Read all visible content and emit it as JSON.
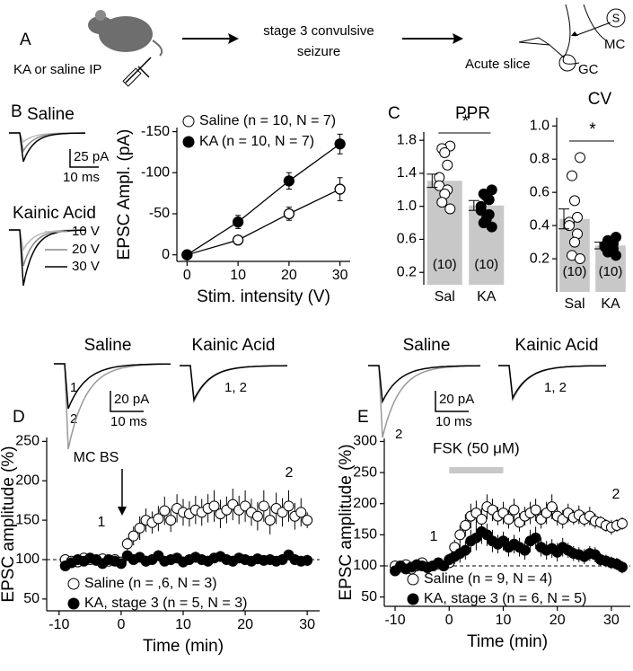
{
  "panels": [
    "A",
    "B",
    "C",
    "D",
    "E"
  ],
  "schematic": {
    "injection": "KA or saline IP",
    "stage": [
      "stage 3 convulsive",
      "seizure"
    ],
    "slice": "Acute slice",
    "mc": "MC",
    "gc": "GC",
    "stim": "S"
  },
  "traces": {
    "B": {
      "saline": "Saline",
      "ka": "Kainic Acid",
      "scale_y": "25 pA",
      "scale_x": "10 ms",
      "legend": [
        "10 V",
        "20 V",
        "30 V"
      ]
    },
    "D": {
      "saline": "Saline",
      "ka": "Kainic Acid",
      "scale_y": "20 pA",
      "scale_x": "10 ms",
      "labels": [
        "1",
        "2",
        "1, 2"
      ]
    },
    "E": {
      "saline": "Saline",
      "ka": "Kainic Acid",
      "scale_y": "20 pA",
      "scale_x": "10 ms",
      "labels": [
        "2",
        "1, 2"
      ]
    }
  },
  "chart_data": [
    {
      "type": "line",
      "x_label": "Stim. intensity (V)",
      "y_label": "EPSC Ampl. (pA)",
      "x": [
        0,
        10,
        20,
        30
      ],
      "xlim": [
        -2,
        32
      ],
      "xticks": [
        0,
        10,
        20,
        30
      ],
      "ylim": [
        8,
        -155
      ],
      "yticks": [
        -150,
        -100,
        -50,
        0
      ],
      "series": [
        {
          "name": "Saline (n = 10, N = 7)",
          "color": "#000000",
          "fill": "#ffffff",
          "values": [
            0,
            -18,
            -50,
            -80
          ],
          "errors": [
            0,
            3,
            8,
            14
          ]
        },
        {
          "name": "KA (n = 10, N = 7)",
          "color": "#000000",
          "fill": "#000000",
          "values": [
            0,
            -40,
            -90,
            -135
          ],
          "errors": [
            0,
            8,
            10,
            12
          ]
        }
      ]
    },
    {
      "type": "bar",
      "title": "PPR",
      "categories": [
        "Sal",
        "KA"
      ],
      "values": [
        1.31,
        1.01
      ],
      "errors": [
        0.08,
        0.06
      ],
      "points": [
        [
          1.73,
          1.7,
          1.65,
          1.5,
          1.35,
          1.25,
          1.2,
          1.15,
          1.05,
          0.97
        ],
        [
          1.2,
          1.15,
          1.12,
          1.08,
          1.0,
          0.95,
          0.9,
          0.85,
          0.8,
          0.75
        ]
      ],
      "n_labels": [
        "(10)",
        "(10)"
      ],
      "significance": "*",
      "color": "#c8c8c8",
      "ylim": [
        0.05,
        1.9
      ],
      "yticks": [
        0.2,
        0.6,
        {
          "value": 1,
          "label": "1.0"
        },
        1.4,
        1.8
      ]
    },
    {
      "type": "bar",
      "title": "CV",
      "categories": [
        "Sal",
        "KA"
      ],
      "values": [
        0.44,
        0.28
      ],
      "errors": [
        0.06,
        0.02
      ],
      "points": [
        [
          0.81,
          0.7,
          0.55,
          0.45,
          0.42,
          0.4,
          0.35,
          0.3,
          0.22,
          0.2
        ],
        [
          0.33,
          0.31,
          0.3,
          0.29,
          0.28,
          0.27,
          0.26,
          0.25,
          0.24,
          0.22
        ]
      ],
      "n_labels": [
        "(10)",
        "(10)"
      ],
      "significance": "*",
      "color": "#c8c8c8",
      "ylim": [
        0,
        1.05
      ],
      "yticks": [
        0.2,
        0.4,
        0.6,
        0.8,
        {
          "value": 1,
          "label": "1.0"
        }
      ]
    },
    {
      "type": "scatter",
      "x_label": "Time (min)",
      "y_label": "EPSC amplitude (%)",
      "x": [
        -9,
        -8,
        -7,
        -6,
        -5,
        -4,
        -3,
        -2,
        -1,
        0,
        1,
        2,
        3,
        4,
        5,
        6,
        7,
        8,
        9,
        10,
        11,
        12,
        13,
        14,
        15,
        16,
        17,
        18,
        19,
        20,
        21,
        22,
        23,
        24,
        25,
        26,
        27,
        28,
        29,
        30
      ],
      "xlim": [
        -12,
        32
      ],
      "xticks": [
        -10,
        0,
        10,
        20,
        30
      ],
      "ylim": [
        35,
        255
      ],
      "yticks": [
        50,
        100,
        150,
        200,
        250
      ],
      "ref_line": 100,
      "annotations": [
        "MC BS",
        "1",
        "2"
      ],
      "series": [
        {
          "name": "Saline  (n = ,6, N = 3)",
          "color": "#000000",
          "fill": "#ffffff",
          "values": [
            100,
            98,
            97,
            102,
            100,
            99,
            101,
            98,
            100,
            97,
            120,
            130,
            140,
            150,
            147,
            152,
            162,
            150,
            165,
            160,
            158,
            163,
            160,
            165,
            168,
            158,
            163,
            170,
            163,
            168,
            160,
            155,
            168,
            150,
            165,
            160,
            168,
            155,
            160,
            150
          ],
          "errors": [
            5,
            5,
            6,
            5,
            5,
            6,
            5,
            6,
            5,
            6,
            8,
            12,
            15,
            15,
            14,
            16,
            18,
            15,
            18,
            17,
            16,
            18,
            17,
            18,
            20,
            18,
            17,
            20,
            18,
            20,
            17,
            18,
            20,
            18,
            20,
            18,
            20,
            17,
            18,
            10
          ]
        },
        {
          "name": "KA, stage 3 (n = 5, N = 3)",
          "color": "#000000",
          "fill": "#000000",
          "values": [
            92,
            96,
            100,
            98,
            102,
            100,
            95,
            100,
            98,
            95,
            105,
            100,
            103,
            98,
            100,
            105,
            98,
            100,
            102,
            97,
            100,
            103,
            100,
            98,
            102,
            104,
            100,
            98,
            102,
            100,
            98,
            101,
            99,
            100,
            98,
            100,
            106,
            100,
            98,
            99
          ],
          "errors": [
            5,
            6,
            5,
            6,
            5,
            6,
            5,
            6,
            5,
            6,
            6,
            7,
            6,
            7,
            6,
            7,
            6,
            7,
            6,
            7,
            6,
            7,
            6,
            7,
            6,
            7,
            6,
            7,
            6,
            7,
            6,
            7,
            6,
            7,
            6,
            7,
            6,
            7,
            6,
            7
          ]
        }
      ]
    },
    {
      "type": "scatter",
      "x_label": "Time (min)",
      "y_label": "EPSC amplitude (%)",
      "x": [
        -10,
        -9,
        -8,
        -7,
        -6,
        -5,
        -4,
        -3,
        -2,
        -1,
        0,
        1,
        2,
        3,
        4,
        5,
        6,
        7,
        8,
        9,
        10,
        11,
        12,
        13,
        14,
        15,
        16,
        17,
        18,
        19,
        20,
        21,
        22,
        23,
        24,
        25,
        26,
        27,
        28,
        29,
        30,
        31,
        32
      ],
      "xlim": [
        -12,
        33.5
      ],
      "xticks": [
        -10,
        0,
        10,
        20,
        30
      ],
      "ylim": [
        35,
        305
      ],
      "yticks": [
        50,
        100,
        150,
        200,
        250,
        300
      ],
      "ref_line": 100,
      "annotations": [
        "1",
        "2"
      ],
      "shade": {
        "label": "FSK (50 μM)",
        "range": [
          0,
          10
        ]
      },
      "series": [
        {
          "name": "Saline (n = 9, N = 4)",
          "color": "#000000",
          "fill": "#ffffff",
          "values": [
            100,
            98,
            102,
            95,
            100,
            105,
            98,
            100,
            103,
            100,
            105,
            130,
            150,
            165,
            180,
            185,
            175,
            195,
            190,
            180,
            185,
            175,
            190,
            170,
            180,
            185,
            190,
            175,
            185,
            195,
            180,
            175,
            185,
            178,
            182,
            175,
            180,
            172,
            170,
            165,
            162,
            165,
            168
          ],
          "errors": [
            8,
            8,
            8,
            8,
            8,
            8,
            8,
            8,
            8,
            8,
            8,
            12,
            15,
            18,
            20,
            20,
            18,
            20,
            18,
            15,
            18,
            15,
            18,
            15,
            15,
            18,
            18,
            15,
            18,
            20,
            15,
            15,
            15,
            12,
            15,
            12,
            15,
            12,
            10,
            10,
            12,
            10,
            10
          ]
        },
        {
          "name": "KA, stage 3 (n = 6, N = 5)",
          "color": "#000000",
          "fill": "#000000",
          "values": [
            92,
            100,
            95,
            98,
            102,
            100,
            97,
            100,
            105,
            100,
            110,
            115,
            120,
            125,
            140,
            145,
            155,
            150,
            140,
            135,
            140,
            130,
            135,
            130,
            125,
            140,
            145,
            130,
            125,
            128,
            122,
            130,
            125,
            120,
            118,
            115,
            120,
            118,
            110,
            108,
            105,
            103,
            98
          ],
          "errors": [
            8,
            8,
            8,
            8,
            8,
            8,
            8,
            8,
            8,
            8,
            10,
            12,
            15,
            15,
            18,
            20,
            20,
            18,
            18,
            15,
            15,
            15,
            15,
            15,
            15,
            18,
            18,
            15,
            15,
            15,
            15,
            15,
            12,
            12,
            12,
            12,
            12,
            12,
            10,
            10,
            10,
            10,
            10
          ]
        }
      ]
    }
  ]
}
